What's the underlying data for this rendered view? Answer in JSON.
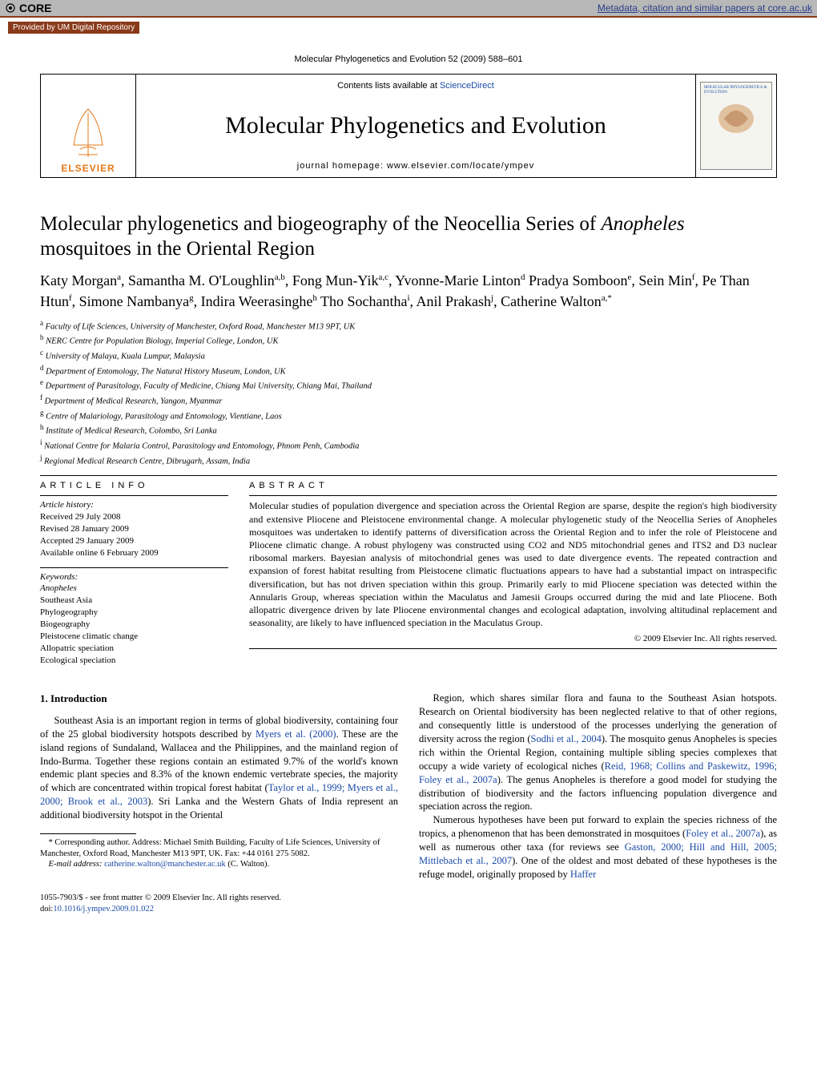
{
  "core_bar": {
    "logo_text": "CORE",
    "link_text": "Metadata, citation and similar papers at core.ac.uk",
    "repo_text": "Provided by UM Digital Repository"
  },
  "citation": "Molecular Phylogenetics and Evolution 52 (2009) 588–601",
  "masthead": {
    "contents_prefix": "Contents lists available at ",
    "contents_link": "ScienceDirect",
    "journal_title": "Molecular Phylogenetics and Evolution",
    "homepage_prefix": "journal homepage: ",
    "homepage_url": "www.elsevier.com/locate/ympev",
    "publisher": "ELSEVIER",
    "cover_text": "MOLECULAR PHYLOGENETICS & EVOLUTION"
  },
  "article": {
    "title_pre": "Molecular phylogenetics and biogeography of the Neocellia Series of ",
    "title_italic": "Anopheles",
    "title_post": " mosquitoes in the Oriental Region",
    "authors_html": "Katy Morgan<sup>a</sup>, Samantha M. O'Loughlin<sup>a,b</sup>, Fong Mun-Yik<sup>a,c</sup>, Yvonne-Marie Linton<sup>d</sup> Pradya Somboon<sup>e</sup>, Sein Min<sup>f</sup>, Pe Than Htun<sup>f</sup>, Simone Nambanya<sup>g</sup>, Indira Weerasinghe<sup>h</sup> Tho Sochantha<sup>i</sup>, Anil Prakash<sup>j</sup>, Catherine Walton<sup>a,*</sup>"
  },
  "affiliations": [
    "a Faculty of Life Sciences, University of Manchester, Oxford Road, Manchester M13 9PT, UK",
    "b NERC Centre for Population Biology, Imperial College, London, UK",
    "c University of Malaya, Kuala Lumpur, Malaysia",
    "d Department of Entomology, The Natural History Museum, London, UK",
    "e Department of Parasitology, Faculty of Medicine, Chiang Mai University, Chiang Mai, Thailand",
    "f Department of Medical Research, Yangon, Myanmar",
    "g Centre of Malariology, Parasitology and Entomology, Vientiane, Laos",
    "h Institute of Medical Research, Colombo, Sri Lanka",
    "i National Centre for Malaria Control, Parasitology and Entomology, Phnom Penh, Cambodia",
    "j Regional Medical Research Centre, Dibrugarh, Assam, India"
  ],
  "info": {
    "heading": "ARTICLE INFO",
    "history_label": "Article history:",
    "history": [
      "Received 29 July 2008",
      "Revised 28 January 2009",
      "Accepted 29 January 2009",
      "Available online 6 February 2009"
    ],
    "keywords_label": "Keywords:",
    "keywords": [
      "Anopheles",
      "Southeast Asia",
      "Phylogeography",
      "Biogeography",
      "Pleistocene climatic change",
      "Allopatric speciation",
      "Ecological speciation"
    ]
  },
  "abstract": {
    "heading": "ABSTRACT",
    "text": "Molecular studies of population divergence and speciation across the Oriental Region are sparse, despite the region's high biodiversity and extensive Pliocene and Pleistocene environmental change. A molecular phylogenetic study of the Neocellia Series of Anopheles mosquitoes was undertaken to identify patterns of diversification across the Oriental Region and to infer the role of Pleistocene and Pliocene climatic change. A robust phylogeny was constructed using CO2 and ND5 mitochondrial genes and ITS2 and D3 nuclear ribosomal markers. Bayesian analysis of mitochondrial genes was used to date divergence events. The repeated contraction and expansion of forest habitat resulting from Pleistocene climatic fluctuations appears to have had a substantial impact on intraspecific diversification, but has not driven speciation within this group. Primarily early to mid Pliocene speciation was detected within the Annularis Group, whereas speciation within the Maculatus and Jamesii Groups occurred during the mid and late Pliocene. Both allopatric divergence driven by late Pliocene environmental changes and ecological adaptation, involving altitudinal replacement and seasonality, are likely to have influenced speciation in the Maculatus Group.",
    "copyright": "© 2009 Elsevier Inc. All rights reserved."
  },
  "section1": {
    "heading": "1. Introduction",
    "p1_pre": "Southeast Asia is an important region in terms of global biodiversity, containing four of the 25 global biodiversity hotspots described by ",
    "p1_link1": "Myers et al. (2000)",
    "p1_mid": ". These are the island regions of Sundaland, Wallacea and the Philippines, and the mainland region of Indo-Burma. Together these regions contain an estimated 9.7% of the world's known endemic plant species and 8.3% of the known endemic vertebrate species, the majority of which are concentrated within tropical forest habitat (",
    "p1_link2": "Taylor et al., 1999; Myers et al., 2000; Brook et al., 2003",
    "p1_post": "). Sri Lanka and the Western Ghats of India represent an additional biodiversity hotspot in the Oriental",
    "p2_pre": "Region, which shares similar flora and fauna to the Southeast Asian hotspots. Research on Oriental biodiversity has been neglected relative to that of other regions, and consequently little is understood of the processes underlying the generation of diversity across the region (",
    "p2_link1": "Sodhi et al., 2004",
    "p2_mid1": "). The mosquito genus Anopheles is species rich within the Oriental Region, containing multiple sibling species complexes that occupy a wide variety of ecological niches (",
    "p2_link2": "Reid, 1968; Collins and Paskewitz, 1996; Foley et al., 2007a",
    "p2_mid2": "). The genus Anopheles is therefore a good model for studying the distribution of biodiversity and the factors influencing population divergence and speciation across the region.",
    "p3_pre": "Numerous hypotheses have been put forward to explain the species richness of the tropics, a phenomenon that has been demonstrated in mosquitoes (",
    "p3_link1": "Foley et al., 2007a",
    "p3_mid1": "), as well as numerous other taxa (for reviews see ",
    "p3_link2": "Gaston, 2000; Hill and Hill, 2005; Mittlebach et al., 2007",
    "p3_mid2": "). One of the oldest and most debated of these hypotheses is the refuge model, originally proposed by ",
    "p3_link3": "Haffer"
  },
  "footnotes": {
    "corr": "* Corresponding author. Address: Michael Smith Building, Faculty of Life Sciences, University of Manchester, Oxford Road, Manchester M13 9PT, UK. Fax: +44 0161 275 5082.",
    "email_label": "E-mail address: ",
    "email": "catherine.walton@manchester.ac.uk",
    "email_post": " (C. Walton)."
  },
  "front_matter": {
    "line1": "1055-7903/$ - see front matter © 2009 Elsevier Inc. All rights reserved.",
    "doi_label": "doi:",
    "doi": "10.1016/j.ympev.2009.01.022"
  },
  "colors": {
    "link": "#1a4aa8",
    "elsevier_orange": "#e67817",
    "core_brown": "#8a3a1a",
    "core_grey": "#b8b8b8"
  }
}
